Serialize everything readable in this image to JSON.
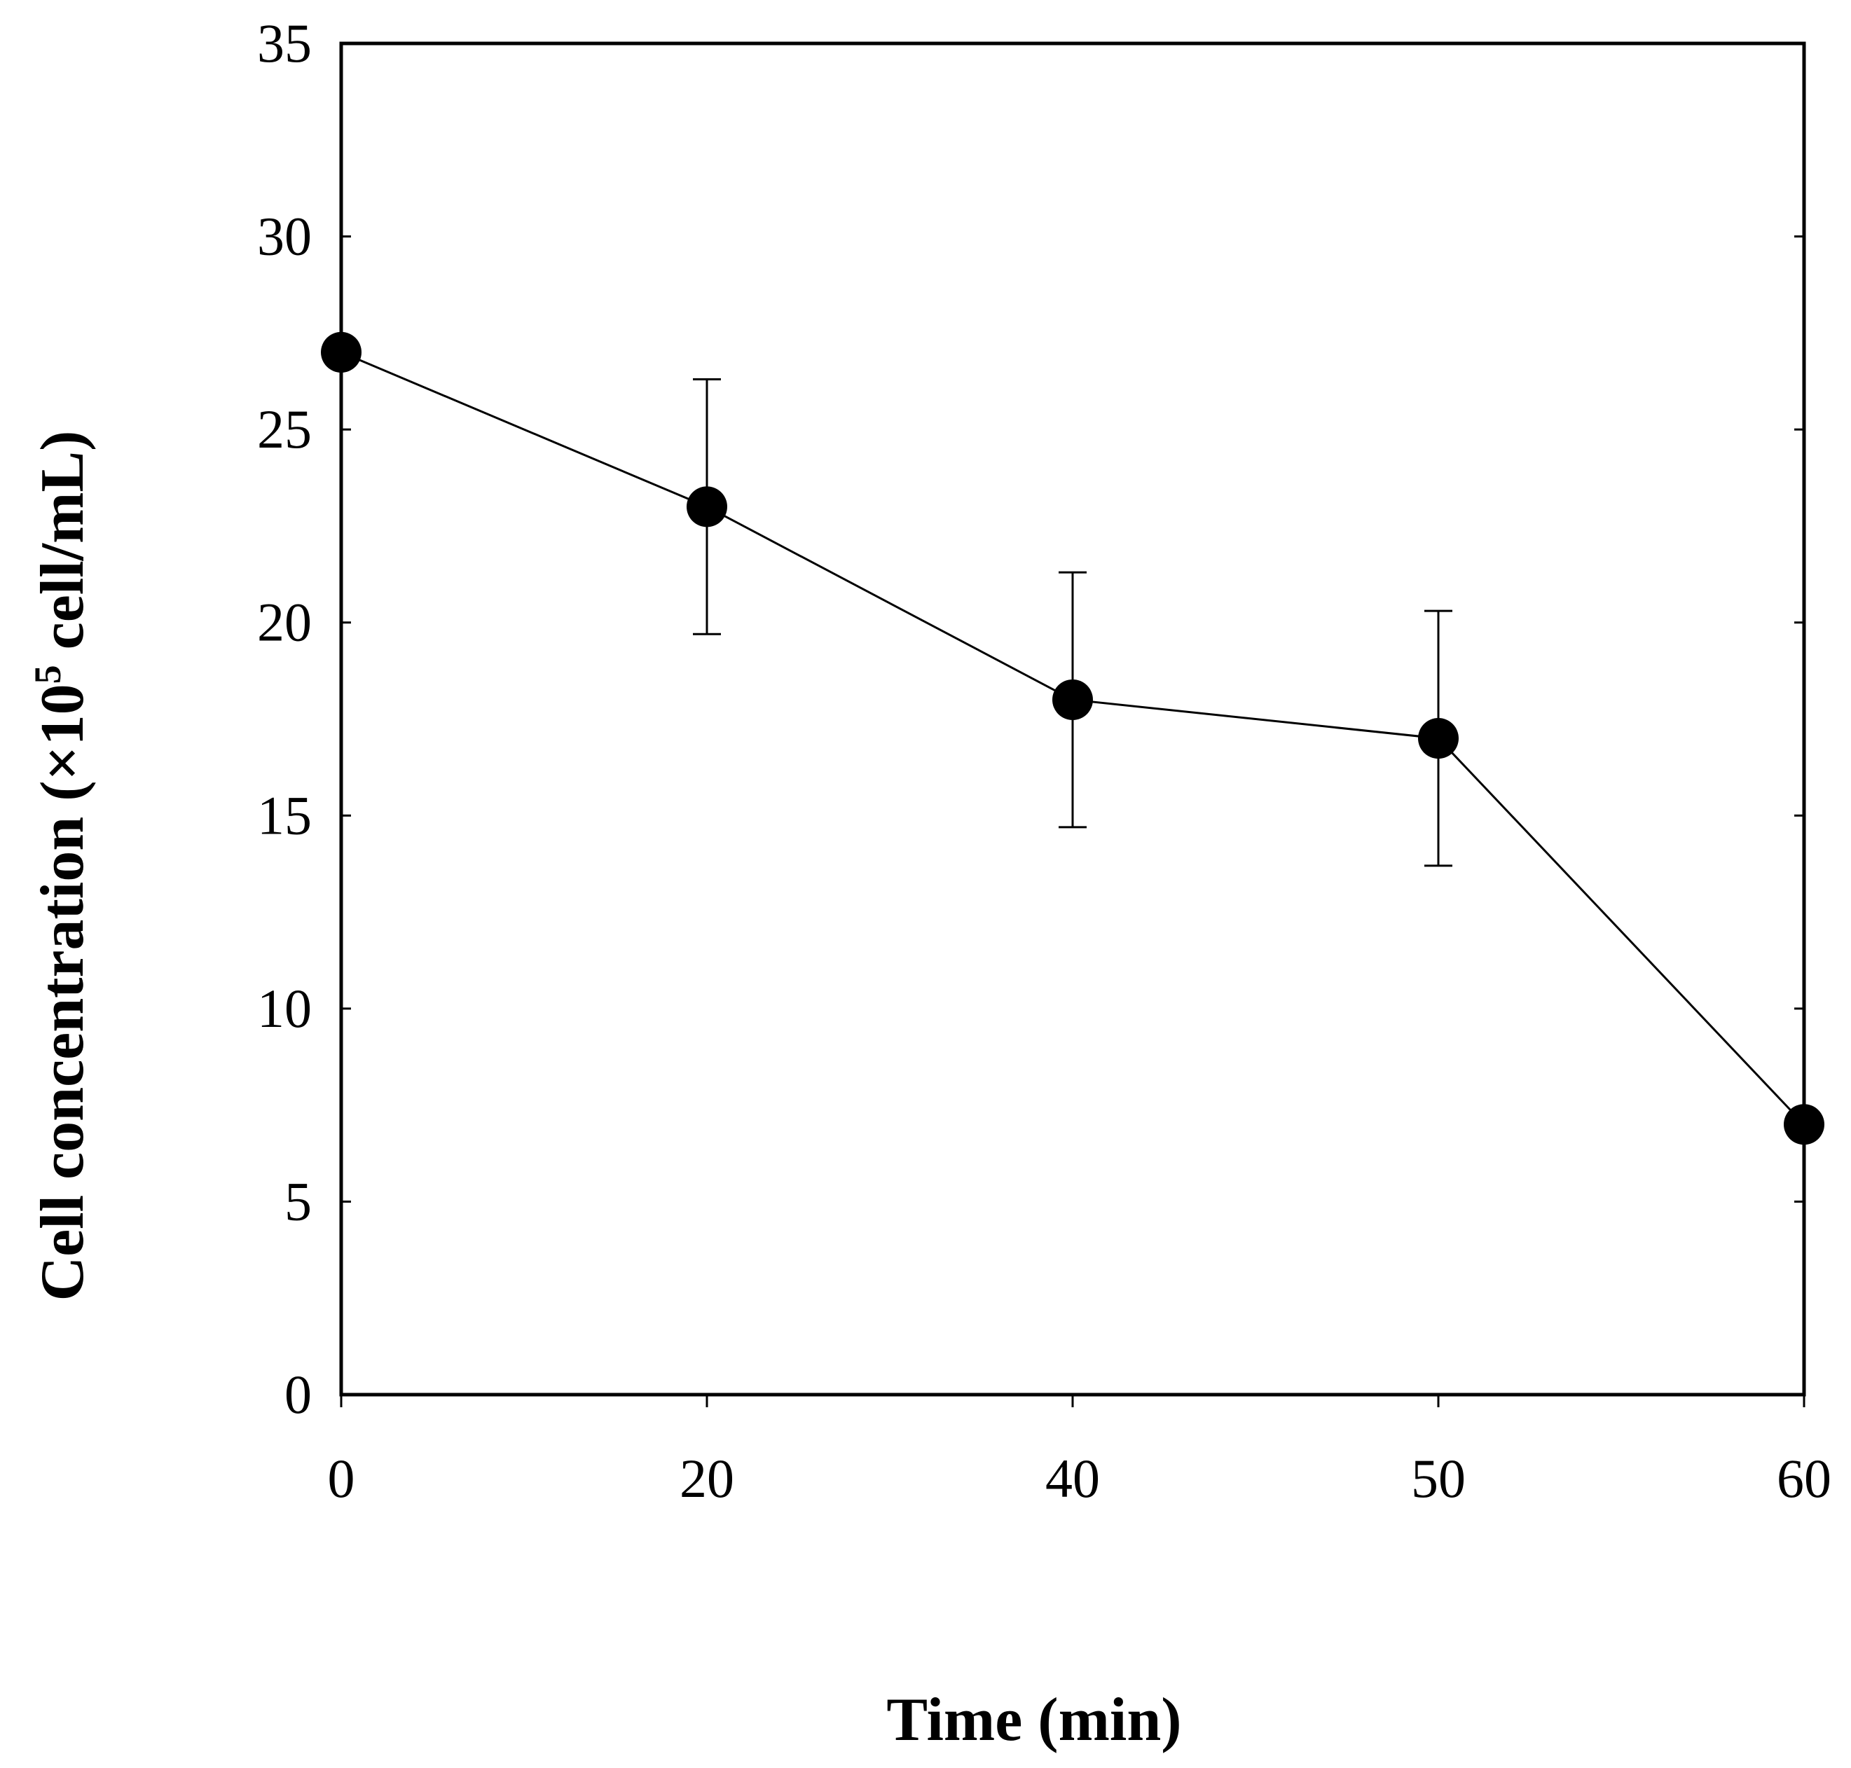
{
  "colors": {
    "axis": "#000000",
    "line": "#000000",
    "marker": "#000000",
    "background": "#ffffff"
  },
  "chart_data": {
    "type": "line",
    "title": "",
    "xlabel": "Time (min)",
    "ylabel_main": "Cell concentration (×10",
    "ylabel_sup": "5",
    "ylabel_tail": " cell/mL)",
    "x_ticks": [
      "0",
      "20",
      "40",
      "50",
      "60"
    ],
    "y_ticks": [
      "0",
      "5",
      "10",
      "15",
      "20",
      "25",
      "30",
      "35"
    ],
    "ylim": [
      0,
      35
    ],
    "grid": false,
    "series": [
      {
        "name": "Cell concentration",
        "x": [
          "0",
          "20",
          "40",
          "50",
          "60"
        ],
        "values": [
          27.0,
          23.0,
          18.0,
          17.0,
          7.0
        ],
        "error": [
          null,
          3.3,
          3.3,
          3.3,
          null
        ]
      }
    ]
  }
}
